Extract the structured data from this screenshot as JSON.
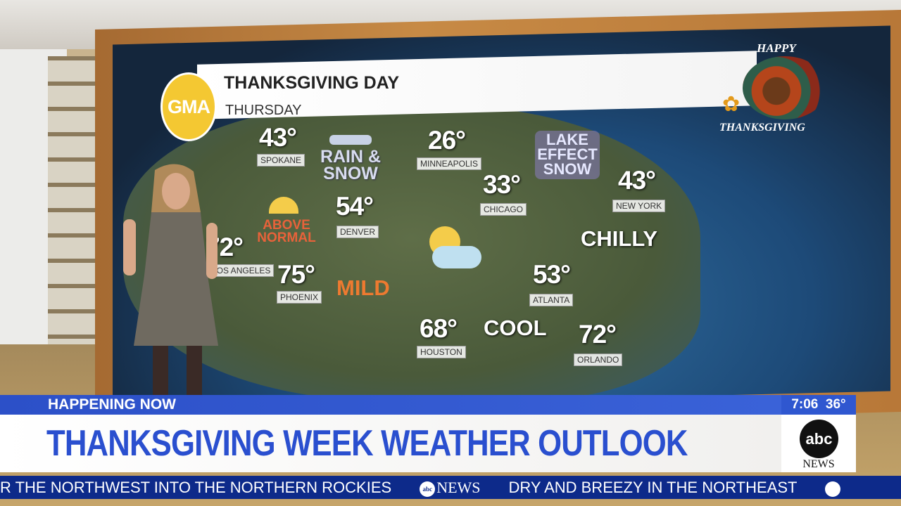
{
  "map_header": {
    "title": "THANKSGIVING DAY",
    "subtitle": "THURSDAY",
    "logo": "GMA"
  },
  "corner_logo": {
    "top": "HAPPY",
    "bottom": "THANKSGIVING"
  },
  "cities": [
    {
      "name": "SPOKANE",
      "temp": "43°"
    },
    {
      "name": "MINNEAPOLIS",
      "temp": "26°"
    },
    {
      "name": "CHICAGO",
      "temp": "33°"
    },
    {
      "name": "NEW YORK",
      "temp": "43°"
    },
    {
      "name": "DENVER",
      "temp": "54°"
    },
    {
      "name": "LOS ANGELES",
      "temp": "72°"
    },
    {
      "name": "PHOENIX",
      "temp": "75°"
    },
    {
      "name": "ATLANTA",
      "temp": "53°"
    },
    {
      "name": "HOUSTON",
      "temp": "68°"
    },
    {
      "name": "ORLANDO",
      "temp": "72°"
    }
  ],
  "conditions": {
    "rain_snow": "RAIN & SNOW",
    "lake_effect": "LAKE EFFECT SNOW",
    "above_normal": "ABOVE NORMAL",
    "mild": "MILD",
    "chilly": "CHILLY",
    "cool": "COOL"
  },
  "icons": {
    "sun": "sun-icon",
    "partly_cloudy": "partly-cloudy-icon",
    "snow_cloud": "snow-cloud-icon"
  },
  "lower_third": {
    "kicker": "HAPPENING NOW",
    "headline": "THANKSGIVING WEEK WEATHER OUTLOOK",
    "time": "7:06",
    "temperature": "36°",
    "network": "abc",
    "network_sub": "NEWS"
  },
  "ticker": {
    "items": [
      "R THE NORTHWEST INTO THE NORTHERN ROCKIES",
      "DRY AND BREEZY IN THE NORTHEAST"
    ],
    "logo": "NEWS"
  },
  "colors": {
    "headline_blue": "#2a4fcf",
    "ticker_navy": "#0d2a8a",
    "gma_yellow": "#f4c832",
    "mild_orange": "#e8702a"
  }
}
